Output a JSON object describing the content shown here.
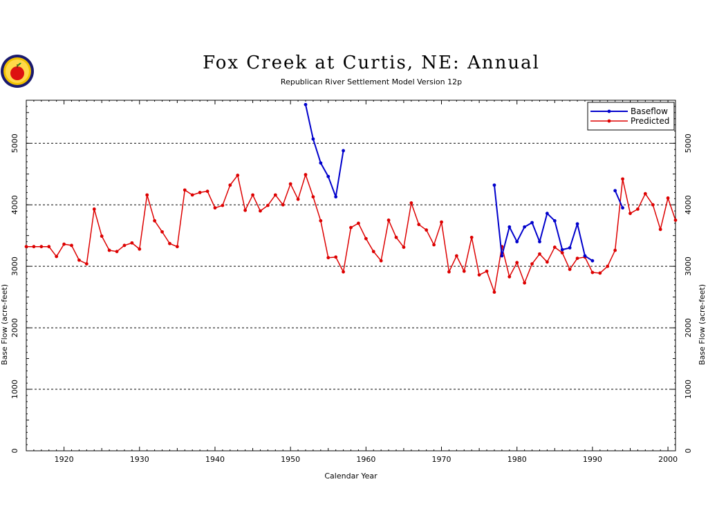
{
  "colors": {
    "baseflow": "#0000cc",
    "predicted": "#dd0000",
    "grid": "#000000",
    "axis": "#000000"
  },
  "logo": {
    "icon": "apple-emblem-icon"
  },
  "chart_data": {
    "type": "line",
    "title": "Fox Creek at Curtis, NE: Annual",
    "subtitle": "Republican River Settlement Model Version 12p",
    "xlabel": "Calendar Year",
    "ylabel": "Base Flow (acre-feet)",
    "xlim": [
      1915,
      2001
    ],
    "ylim": [
      0,
      5700
    ],
    "xticks": [
      1920,
      1930,
      1940,
      1950,
      1960,
      1970,
      1980,
      1990,
      2000
    ],
    "yticks": [
      0,
      1000,
      2000,
      3000,
      4000,
      5000
    ],
    "grid": "horizontal dashed",
    "legend_position": "top-right",
    "series": [
      {
        "name": "Baseflow",
        "segments": [
          {
            "x": [
              1952,
              1953,
              1954,
              1955,
              1956,
              1957
            ],
            "y": [
              5630,
              5070,
              4680,
              4460,
              4130,
              4880
            ]
          },
          {
            "x": [
              1977,
              1978,
              1979,
              1980,
              1981,
              1982,
              1983,
              1984,
              1985,
              1986,
              1987,
              1988,
              1989,
              1990
            ],
            "y": [
              4320,
              3170,
              3640,
              3400,
              3640,
              3710,
              3400,
              3860,
              3740,
              3270,
              3300,
              3690,
              3170,
              3090
            ]
          },
          {
            "x": [
              1993,
              1994
            ],
            "y": [
              4230,
              3950
            ]
          }
        ]
      },
      {
        "name": "Predicted",
        "segments": [
          {
            "x": [
              1915,
              1916,
              1917,
              1918,
              1919,
              1920,
              1921,
              1922,
              1923,
              1924,
              1925,
              1926,
              1927,
              1928,
              1929,
              1930,
              1931,
              1932,
              1933,
              1934,
              1935,
              1936,
              1937,
              1938,
              1939,
              1940,
              1941,
              1942,
              1943,
              1944,
              1945,
              1946,
              1947,
              1948,
              1949,
              1950,
              1951,
              1952,
              1953,
              1954,
              1955,
              1956,
              1957,
              1958,
              1959,
              1960,
              1961,
              1962,
              1963,
              1964,
              1965,
              1966,
              1967,
              1968,
              1969,
              1970,
              1971,
              1972,
              1973,
              1974,
              1975,
              1976,
              1977,
              1978,
              1979,
              1980,
              1981,
              1982,
              1983,
              1984,
              1985,
              1986,
              1987,
              1988,
              1989,
              1990,
              1991,
              1992,
              1993,
              1994,
              1995,
              1996,
              1997,
              1998,
              1999,
              2000,
              2001
            ],
            "y": [
              3320,
              3320,
              3320,
              3320,
              3160,
              3360,
              3340,
              3100,
              3040,
              3930,
              3490,
              3260,
              3240,
              3340,
              3380,
              3280,
              4160,
              3740,
              3560,
              3370,
              3320,
              4240,
              4160,
              4200,
              4220,
              3950,
              3990,
              4320,
              4480,
              3910,
              4160,
              3900,
              3990,
              4160,
              4000,
              4340,
              4090,
              4490,
              4130,
              3740,
              3140,
              3150,
              2910,
              3630,
              3700,
              3450,
              3240,
              3090,
              3750,
              3470,
              3310,
              4030,
              3680,
              3590,
              3350,
              3720,
              2910,
              3170,
              2920,
              3470,
              2860,
              2920,
              2580,
              3320,
              2830,
              3060,
              2730,
              3040,
              3200,
              3070,
              3310,
              3220,
              2950,
              3130,
              3150,
              2900,
              2890,
              3000,
              3260,
              4420,
              3860,
              3930,
              4180,
              4000,
              3600,
              4110,
              3750
            ]
          }
        ]
      }
    ]
  }
}
